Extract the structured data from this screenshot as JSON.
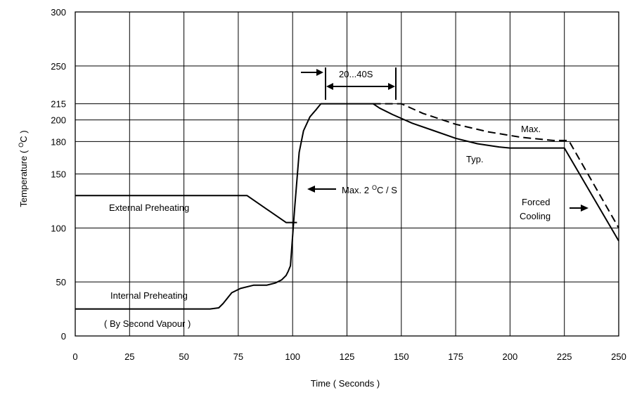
{
  "chart_data": {
    "type": "line",
    "title": "",
    "xlabel": "Time ( Seconds )",
    "ylabel_text": "Temperature (",
    "ylabel_sup": "O",
    "ylabel_tail": "C )",
    "xlim": [
      0,
      250
    ],
    "ylim": [
      0,
      300
    ],
    "grid": true,
    "x_ticks": [
      0,
      25,
      50,
      75,
      100,
      125,
      150,
      175,
      200,
      225,
      250
    ],
    "y_ticks": [
      0,
      50,
      100,
      150,
      180,
      200,
      215,
      250,
      300
    ],
    "series": [
      {
        "style": "solid",
        "points": [
          [
            0,
            25
          ],
          [
            62,
            25
          ],
          [
            66,
            26
          ],
          [
            68,
            30
          ],
          [
            70,
            35
          ],
          [
            72,
            40
          ],
          [
            76,
            44
          ],
          [
            82,
            47
          ],
          [
            88,
            47
          ],
          [
            92,
            49
          ],
          [
            95,
            52
          ],
          [
            97,
            56
          ],
          [
            98,
            60
          ],
          [
            99,
            65
          ],
          [
            101,
            120
          ],
          [
            103,
            170
          ],
          [
            105,
            190
          ],
          [
            108,
            203
          ],
          [
            111,
            210
          ],
          [
            113,
            215
          ],
          [
            137,
            215
          ],
          [
            140,
            211
          ],
          [
            146,
            205
          ],
          [
            155,
            197
          ],
          [
            165,
            190
          ],
          [
            175,
            183
          ],
          [
            185,
            178
          ],
          [
            195,
            175
          ],
          [
            200,
            174
          ],
          [
            225,
            174
          ],
          [
            250,
            88
          ]
        ]
      },
      {
        "name": "Max.",
        "style": "dashed",
        "points": [
          [
            137,
            215
          ],
          [
            150,
            215
          ],
          [
            160,
            206
          ],
          [
            175,
            196
          ],
          [
            190,
            189
          ],
          [
            205,
            184
          ],
          [
            220,
            181
          ],
          [
            227,
            181
          ],
          [
            250,
            100
          ]
        ]
      },
      {
        "style": "solid",
        "points": [
          [
            0,
            130
          ],
          [
            79,
            130
          ],
          [
            97,
            105
          ],
          [
            102,
            105
          ]
        ]
      }
    ],
    "annotations": {
      "typ": "Typ.",
      "max": "Max.",
      "window": "20...40S",
      "slope_prefix": "Max. 2",
      "slope_sup": "O",
      "slope_suffix": "C / S",
      "external": "External Preheating",
      "internal": "Internal Preheating",
      "vapour": "( By Second Vapour )",
      "forced": "Forced",
      "cooling": "Cooling"
    }
  }
}
